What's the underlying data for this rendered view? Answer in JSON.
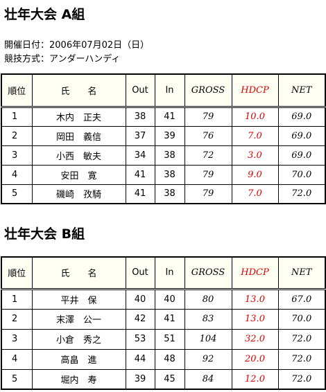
{
  "sections": [
    {
      "title": "壮年大会 A組",
      "header": [
        "順位",
        "氏　　名",
        "Out",
        "In",
        "GROSS",
        "HDCP",
        "NET"
      ],
      "rows": [
        [
          "1",
          "木内　正夫",
          "38",
          "41",
          "79",
          "10.0",
          "69.0"
        ],
        [
          "2",
          "岡田　義信",
          "37",
          "39",
          "76",
          "7.0",
          "69.0"
        ],
        [
          "3",
          "小西　敏夫",
          "34",
          "38",
          "72",
          "3.0",
          "69.0"
        ],
        [
          "4",
          "安田　寛",
          "41",
          "38",
          "79",
          "9.0",
          "70.0"
        ],
        [
          "5",
          "磯崎　孜騎",
          "41",
          "38",
          "79",
          "7.0",
          "72.0"
        ]
      ]
    },
    {
      "title": "壮年大会 B組",
      "header": [
        "順位",
        "氏　　名",
        "Out",
        "In",
        "GROSS",
        "HDCP",
        "NET"
      ],
      "rows": [
        [
          "1",
          "平井　保",
          "40",
          "40",
          "80",
          "13.0",
          "67.0"
        ],
        [
          "2",
          "末澤　公一",
          "42",
          "41",
          "83",
          "13.0",
          "70.0"
        ],
        [
          "3",
          "小倉　秀之",
          "53",
          "51",
          "104",
          "32.0",
          "72.0"
        ],
        [
          "4",
          "高畠　進",
          "44",
          "48",
          "92",
          "20.0",
          "72.0"
        ],
        [
          "5",
          "堀内　寿",
          "39",
          "45",
          "84",
          "12.0",
          "72.0"
        ]
      ]
    }
  ],
  "info": [
    "開催日付：2006年07月02日（日）",
    "競技方式：アンダーハンディ"
  ]
}
